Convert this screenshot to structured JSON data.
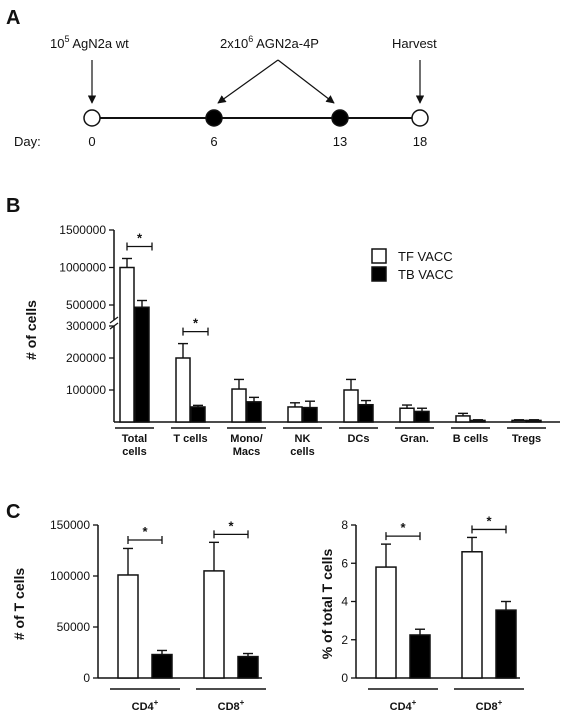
{
  "panels": {
    "a": "A",
    "b": "B",
    "c": "C"
  },
  "timeline": {
    "day_label": "Day:",
    "days": [
      "0",
      "6",
      "13",
      "18"
    ],
    "filled": [
      false,
      true,
      true,
      false
    ],
    "ann_wt_base": "10",
    "ann_wt_sup": "5",
    "ann_wt_rest": " AgN2a wt",
    "ann_4p_prefix": "2x10",
    "ann_4p_sup": "6",
    "ann_4p_rest": " AGN2a-4P",
    "ann_harvest": "Harvest"
  },
  "chart_data": [
    {
      "type": "bar",
      "panel": "B",
      "ylabel": "# of cells",
      "y_ticks_upper": [
        "1500000",
        "1000000",
        "500000"
      ],
      "y_ticks_lower": [
        "300000",
        "200000",
        "100000"
      ],
      "ylim_upper": [
        300000,
        1500000
      ],
      "ylim_lower": [
        0,
        300000
      ],
      "axis_break": true,
      "categories": [
        "Total cells",
        "T cells",
        "Mono/ Macs",
        "NK cells",
        "DCs",
        "Gran.",
        "B cells",
        "Tregs"
      ],
      "category_lines": [
        [
          "Total",
          "cells"
        ],
        [
          "T cells"
        ],
        [
          "Mono/",
          "Macs"
        ],
        [
          "NK",
          "cells"
        ],
        [
          "DCs"
        ],
        [
          "Gran."
        ],
        [
          "B cells"
        ],
        [
          "Tregs"
        ]
      ],
      "series": [
        {
          "name": "TF VACC",
          "fill": "#ffffff",
          "values": [
            1000000,
            200000,
            103000,
            47000,
            100000,
            43000,
            19000,
            5000
          ],
          "errors": [
            120000,
            45000,
            30000,
            13000,
            33000,
            10000,
            8000,
            2000
          ]
        },
        {
          "name": "TB VACC",
          "fill": "#000000",
          "values": [
            470000,
            47000,
            63000,
            45000,
            54000,
            33000,
            5000,
            5000
          ],
          "errors": [
            90000,
            5000,
            14000,
            20000,
            13000,
            10000,
            2000,
            2000
          ]
        }
      ],
      "significance": [
        {
          "category_index": 0,
          "label": "*"
        },
        {
          "category_index": 1,
          "label": "*"
        }
      ],
      "legend_position": "top-right"
    },
    {
      "type": "bar",
      "panel": "C-left",
      "ylabel": "# of T cells",
      "y_ticks": [
        "150000",
        "100000",
        "50000",
        "0"
      ],
      "ylim": [
        0,
        150000
      ],
      "categories": [
        "CD4+",
        "CD8+"
      ],
      "category_base": [
        "CD4",
        "CD8"
      ],
      "category_sup": [
        "+",
        "+"
      ],
      "series": [
        {
          "name": "TF VACC",
          "fill": "#ffffff",
          "values": [
            101000,
            105000
          ],
          "errors": [
            26000,
            28000
          ]
        },
        {
          "name": "TB VACC",
          "fill": "#000000",
          "values": [
            23000,
            21000
          ],
          "errors": [
            4000,
            3000
          ]
        }
      ],
      "significance": [
        {
          "category_index": 0,
          "label": "*"
        },
        {
          "category_index": 1,
          "label": "*"
        }
      ]
    },
    {
      "type": "bar",
      "panel": "C-right",
      "ylabel": "% of total T cells",
      "y_ticks": [
        "8",
        "6",
        "4",
        "2",
        "0"
      ],
      "ylim": [
        0,
        8
      ],
      "categories": [
        "CD4+",
        "CD8+"
      ],
      "category_base": [
        "CD4",
        "CD8"
      ],
      "category_sup": [
        "+",
        "+"
      ],
      "series": [
        {
          "name": "TF VACC",
          "fill": "#ffffff",
          "values": [
            5.8,
            6.6
          ],
          "errors": [
            1.2,
            0.75
          ]
        },
        {
          "name": "TB VACC",
          "fill": "#000000",
          "values": [
            2.25,
            3.55
          ],
          "errors": [
            0.3,
            0.45
          ]
        }
      ],
      "significance": [
        {
          "category_index": 0,
          "label": "*"
        },
        {
          "category_index": 1,
          "label": "*"
        }
      ]
    }
  ]
}
